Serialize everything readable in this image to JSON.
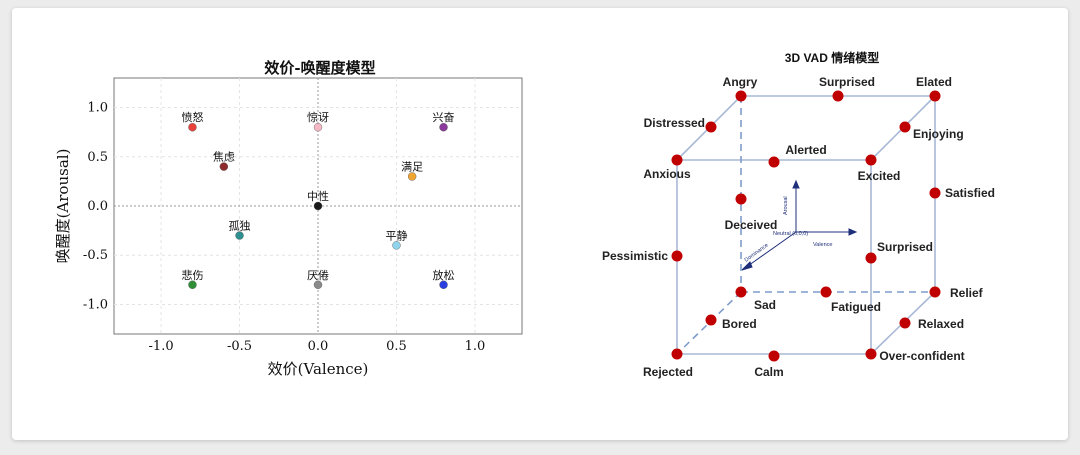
{
  "left_chart": {
    "chart_data": {
      "type": "scatter",
      "title": "效价-唤醒度模型",
      "xlabel": "效价(Valence)",
      "ylabel": "唤醒度(Arousal)",
      "xlim": [
        -1.3,
        1.3
      ],
      "ylim": [
        -1.3,
        1.3
      ],
      "xticks": [
        -1.0,
        -0.5,
        0.0,
        0.5,
        1.0
      ],
      "yticks": [
        1.0,
        0.5,
        0.0,
        -0.5,
        -1.0
      ],
      "xtick_labels": [
        "-1.0",
        "-0.5",
        "0.0",
        "0.5",
        "1.0"
      ],
      "ytick_labels": [
        "1.0",
        "0.5",
        "0.0",
        "-0.5",
        "-1.0"
      ],
      "grid": true,
      "points": [
        {
          "label": "愤怒",
          "x": -0.8,
          "y": 0.8,
          "color": "#e8413c"
        },
        {
          "label": "惊讶",
          "x": 0.0,
          "y": 0.8,
          "color": "#f4b8c4"
        },
        {
          "label": "兴奋",
          "x": 0.8,
          "y": 0.8,
          "color": "#8b3a9c"
        },
        {
          "label": "焦虑",
          "x": -0.6,
          "y": 0.4,
          "color": "#8e2b2b"
        },
        {
          "label": "满足",
          "x": 0.6,
          "y": 0.3,
          "color": "#f0a632"
        },
        {
          "label": "中性",
          "x": 0.0,
          "y": 0.0,
          "color": "#1a1a1a"
        },
        {
          "label": "孤独",
          "x": -0.5,
          "y": -0.3,
          "color": "#2f8f91"
        },
        {
          "label": "平静",
          "x": 0.5,
          "y": -0.4,
          "color": "#8fd3ec"
        },
        {
          "label": "悲伤",
          "x": -0.8,
          "y": -0.8,
          "color": "#2f8f36"
        },
        {
          "label": "厌倦",
          "x": 0.0,
          "y": -0.8,
          "color": "#8a8a8a"
        },
        {
          "label": "放松",
          "x": 0.8,
          "y": -0.8,
          "color": "#2b3ee0"
        }
      ]
    }
  },
  "right_diagram": {
    "title": "3D VAD 情绪模型",
    "axes": {
      "arousal": "Arousal",
      "valence": "Valence",
      "dominance": "Dominance",
      "origin": "Neutral (0,0,0)"
    },
    "nodes": {
      "angry": "Angry",
      "surprised_top": "Surprised",
      "elated": "Elated",
      "distressed": "Distressed",
      "enjoying": "Enjoying",
      "alerted": "Alerted",
      "anxious": "Anxious",
      "excited": "Excited",
      "satisfied": "Satisfied",
      "deceived": "Deceived",
      "pessimistic": "Pessimistic",
      "surprised_mid": "Surprised",
      "sad": "Sad",
      "fatigued": "Fatigued",
      "relief": "Relief",
      "bored": "Bored",
      "relaxed": "Relaxed",
      "rejected": "Rejected",
      "calm": "Calm",
      "over_confident": "Over-confident"
    },
    "node_color": "#c00000",
    "edge_color": "#a9b8d6",
    "dashed_edge_color": "#7f9ccc"
  }
}
